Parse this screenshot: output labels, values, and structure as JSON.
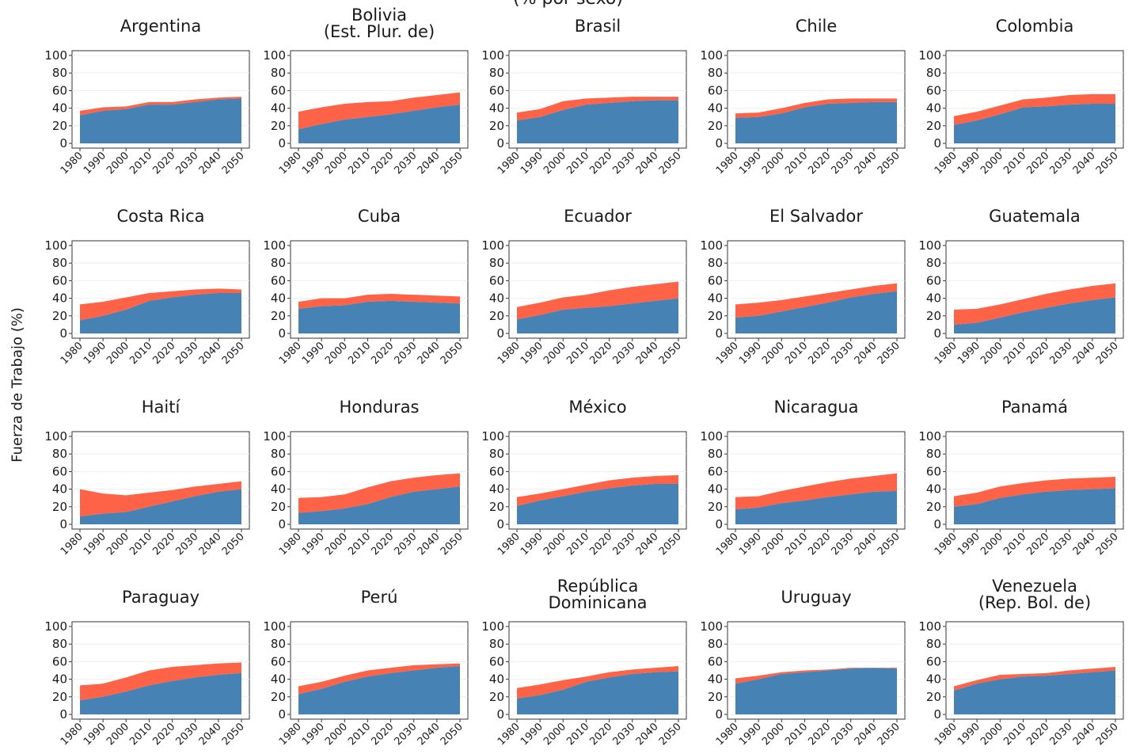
{
  "header": {
    "title_fragment": "(% por sexo)"
  },
  "ylabel": "Fuerza de Trabajo (%)",
  "colors": {
    "male": "#4682b4",
    "female": "#ff6347",
    "grid": "#ebebeb",
    "axis": "#333333"
  },
  "chart_data": {
    "type": "area",
    "stacked": true,
    "ylim": [
      0,
      100
    ],
    "xlim": [
      1980,
      2050
    ],
    "xticks": [
      "1980",
      "1990",
      "2000",
      "2010",
      "2020",
      "2030",
      "2040",
      "2050"
    ],
    "yticks": [
      "0",
      "20",
      "40",
      "60",
      "80",
      "100"
    ],
    "x": [
      1980,
      1990,
      2000,
      2010,
      2020,
      2030,
      2040,
      2050
    ],
    "panels": [
      {
        "title": [
          "Argentina"
        ],
        "bottom": [
          32,
          37,
          39,
          44,
          44,
          47,
          50,
          51
        ],
        "top": [
          37,
          41,
          42,
          47,
          47,
          50,
          52,
          53
        ]
      },
      {
        "title": [
          "Bolivia",
          "(Est. Plur. de)"
        ],
        "bottom": [
          16,
          22,
          27,
          30,
          33,
          37,
          41,
          44
        ],
        "top": [
          36,
          41,
          45,
          47,
          48,
          52,
          55,
          58
        ]
      },
      {
        "title": [
          "Brasil"
        ],
        "bottom": [
          26,
          30,
          38,
          44,
          46,
          48,
          49,
          49
        ],
        "top": [
          35,
          39,
          48,
          51,
          52,
          53,
          53,
          53
        ]
      },
      {
        "title": [
          "Chile"
        ],
        "bottom": [
          29,
          30,
          34,
          41,
          45,
          46,
          47,
          47
        ],
        "top": [
          34,
          35,
          40,
          46,
          50,
          51,
          51,
          51
        ]
      },
      {
        "title": [
          "Colombia"
        ],
        "bottom": [
          21,
          26,
          33,
          41,
          42,
          44,
          45,
          45
        ],
        "top": [
          31,
          36,
          43,
          50,
          52,
          55,
          56,
          56
        ]
      },
      {
        "title": [
          "Costa Rica"
        ],
        "bottom": [
          15,
          20,
          27,
          37,
          41,
          44,
          46,
          46
        ],
        "top": [
          33,
          36,
          41,
          46,
          48,
          50,
          51,
          50
        ]
      },
      {
        "title": [
          "Cuba"
        ],
        "bottom": [
          28,
          31,
          32,
          36,
          37,
          36,
          35,
          34
        ],
        "top": [
          36,
          40,
          40,
          44,
          45,
          44,
          43,
          42
        ]
      },
      {
        "title": [
          "Ecuador"
        ],
        "bottom": [
          16,
          21,
          27,
          29,
          31,
          34,
          37,
          40
        ],
        "top": [
          30,
          35,
          41,
          44,
          49,
          53,
          56,
          59
        ]
      },
      {
        "title": [
          "El Salvador"
        ],
        "bottom": [
          18,
          20,
          25,
          30,
          35,
          41,
          45,
          48
        ],
        "top": [
          33,
          35,
          38,
          42,
          46,
          50,
          54,
          57
        ]
      },
      {
        "title": [
          "Guatemala"
        ],
        "bottom": [
          10,
          12,
          18,
          24,
          29,
          34,
          38,
          41
        ],
        "top": [
          27,
          28,
          33,
          39,
          45,
          50,
          54,
          57
        ]
      },
      {
        "title": [
          "Haití"
        ],
        "bottom": [
          9,
          12,
          14,
          20,
          26,
          32,
          37,
          40
        ],
        "top": [
          40,
          35,
          33,
          36,
          39,
          43,
          46,
          49
        ]
      },
      {
        "title": [
          "Honduras"
        ],
        "bottom": [
          13,
          15,
          18,
          23,
          31,
          37,
          40,
          43
        ],
        "top": [
          30,
          31,
          34,
          42,
          49,
          53,
          56,
          58
        ]
      },
      {
        "title": [
          "México"
        ],
        "bottom": [
          21,
          27,
          32,
          37,
          41,
          44,
          46,
          46
        ],
        "top": [
          31,
          35,
          40,
          45,
          50,
          53,
          55,
          56
        ]
      },
      {
        "title": [
          "Nicaragua"
        ],
        "bottom": [
          17,
          19,
          24,
          27,
          31,
          34,
          37,
          38
        ],
        "top": [
          31,
          32,
          38,
          43,
          48,
          52,
          55,
          58
        ]
      },
      {
        "title": [
          "Panamá"
        ],
        "bottom": [
          20,
          23,
          30,
          34,
          37,
          39,
          40,
          41
        ],
        "top": [
          32,
          36,
          43,
          47,
          50,
          52,
          53,
          54
        ]
      },
      {
        "title": [
          "Paraguay"
        ],
        "bottom": [
          16,
          20,
          26,
          33,
          38,
          42,
          45,
          47
        ],
        "top": [
          33,
          35,
          42,
          50,
          54,
          56,
          58,
          59
        ]
      },
      {
        "title": [
          "Perú"
        ],
        "bottom": [
          23,
          29,
          37,
          43,
          47,
          50,
          53,
          55
        ],
        "top": [
          32,
          37,
          44,
          50,
          53,
          56,
          57,
          58
        ]
      },
      {
        "title": [
          "República",
          "Dominicana"
        ],
        "bottom": [
          18,
          22,
          28,
          37,
          42,
          46,
          48,
          49
        ],
        "top": [
          30,
          34,
          39,
          43,
          48,
          51,
          53,
          55
        ]
      },
      {
        "title": [
          "Uruguay"
        ],
        "bottom": [
          35,
          40,
          46,
          48,
          50,
          52,
          53,
          52
        ],
        "top": [
          41,
          44,
          48,
          50,
          51,
          53,
          53,
          53
        ]
      },
      {
        "title": [
          "Venezuela",
          "(Rep. Bol. de)"
        ],
        "bottom": [
          27,
          35,
          40,
          43,
          44,
          46,
          48,
          50
        ],
        "top": [
          32,
          39,
          45,
          46,
          47,
          50,
          52,
          54
        ]
      }
    ]
  }
}
